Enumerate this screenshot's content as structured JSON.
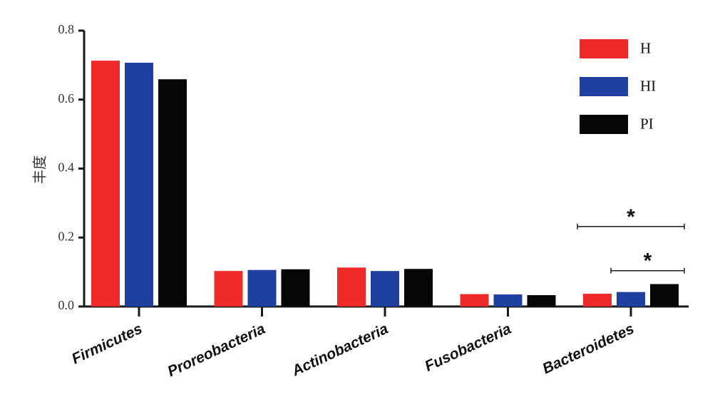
{
  "chart_data": {
    "type": "bar",
    "title": "",
    "xlabel": "",
    "ylabel": "丰度",
    "ylim": [
      0,
      0.8
    ],
    "yticks": [
      "0.0",
      "0.2",
      "0.4",
      "0.6",
      "0.8"
    ],
    "grid": false,
    "legend_position": "top-right",
    "categories": [
      "Firmicutes",
      "Proreobacteria",
      "Actinobacteria",
      "Fusobacteria",
      "Bacteroidetes"
    ],
    "series": [
      {
        "name": "H",
        "color": "#ee2a2b",
        "values": [
          0.713,
          0.103,
          0.113,
          0.036,
          0.037
        ]
      },
      {
        "name": "HI",
        "color": "#1f40a0",
        "values": [
          0.707,
          0.106,
          0.103,
          0.035,
          0.042
        ]
      },
      {
        "name": "PI",
        "color": "#060606",
        "values": [
          0.659,
          0.108,
          0.109,
          0.033,
          0.065
        ]
      }
    ],
    "annotations": [
      {
        "category": "Bacteroidetes",
        "from_series": "H",
        "to_series": "PI",
        "text": "*",
        "level": 0.232
      },
      {
        "category": "Bacteroidetes",
        "from_series": "HI",
        "to_series": "PI",
        "text": "*",
        "level": 0.104
      }
    ]
  }
}
